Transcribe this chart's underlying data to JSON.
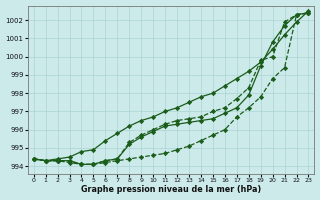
{
  "title": "Graphe pression niveau de la mer (hPa)",
  "bg_color": "#cceaea",
  "grid_color": "#aad4d4",
  "line_color": "#1a5c1a",
  "xlim": [
    -0.5,
    23.5
  ],
  "ylim": [
    993.6,
    1002.8
  ],
  "yticks": [
    994,
    995,
    996,
    997,
    998,
    999,
    1000,
    1001,
    1002
  ],
  "xticks": [
    0,
    1,
    2,
    3,
    4,
    5,
    6,
    7,
    8,
    9,
    10,
    11,
    12,
    13,
    14,
    15,
    16,
    17,
    18,
    19,
    20,
    21,
    22,
    23
  ],
  "series": [
    [
      994.4,
      994.3,
      994.3,
      994.2,
      994.1,
      994.1,
      994.2,
      994.3,
      994.4,
      994.5,
      994.6,
      994.7,
      994.9,
      995.1,
      995.4,
      995.7,
      996.0,
      996.7,
      997.2,
      997.8,
      998.8,
      999.4,
      1002.3,
      1002.4
    ],
    [
      994.4,
      994.3,
      994.3,
      994.3,
      994.1,
      994.1,
      994.3,
      994.4,
      995.2,
      995.6,
      995.9,
      996.2,
      996.3,
      996.4,
      996.5,
      996.6,
      996.9,
      997.2,
      997.9,
      999.5,
      1000.8,
      1001.7,
      1002.3,
      1002.4
    ],
    [
      994.4,
      994.3,
      994.4,
      994.5,
      994.8,
      994.9,
      995.4,
      995.8,
      996.2,
      996.5,
      996.7,
      997.0,
      997.2,
      997.5,
      997.8,
      998.0,
      998.4,
      998.8,
      999.2,
      999.7,
      1000.4,
      1001.2,
      1001.9,
      1002.5
    ],
    [
      994.4,
      994.3,
      994.3,
      994.3,
      994.1,
      994.1,
      994.3,
      994.4,
      995.3,
      995.7,
      996.0,
      996.3,
      996.5,
      996.6,
      996.7,
      997.0,
      997.2,
      997.7,
      998.3,
      999.8,
      1000.0,
      1001.9,
      1002.3,
      1002.4
    ]
  ],
  "linestyles": [
    "--",
    "-",
    "-",
    "--"
  ]
}
